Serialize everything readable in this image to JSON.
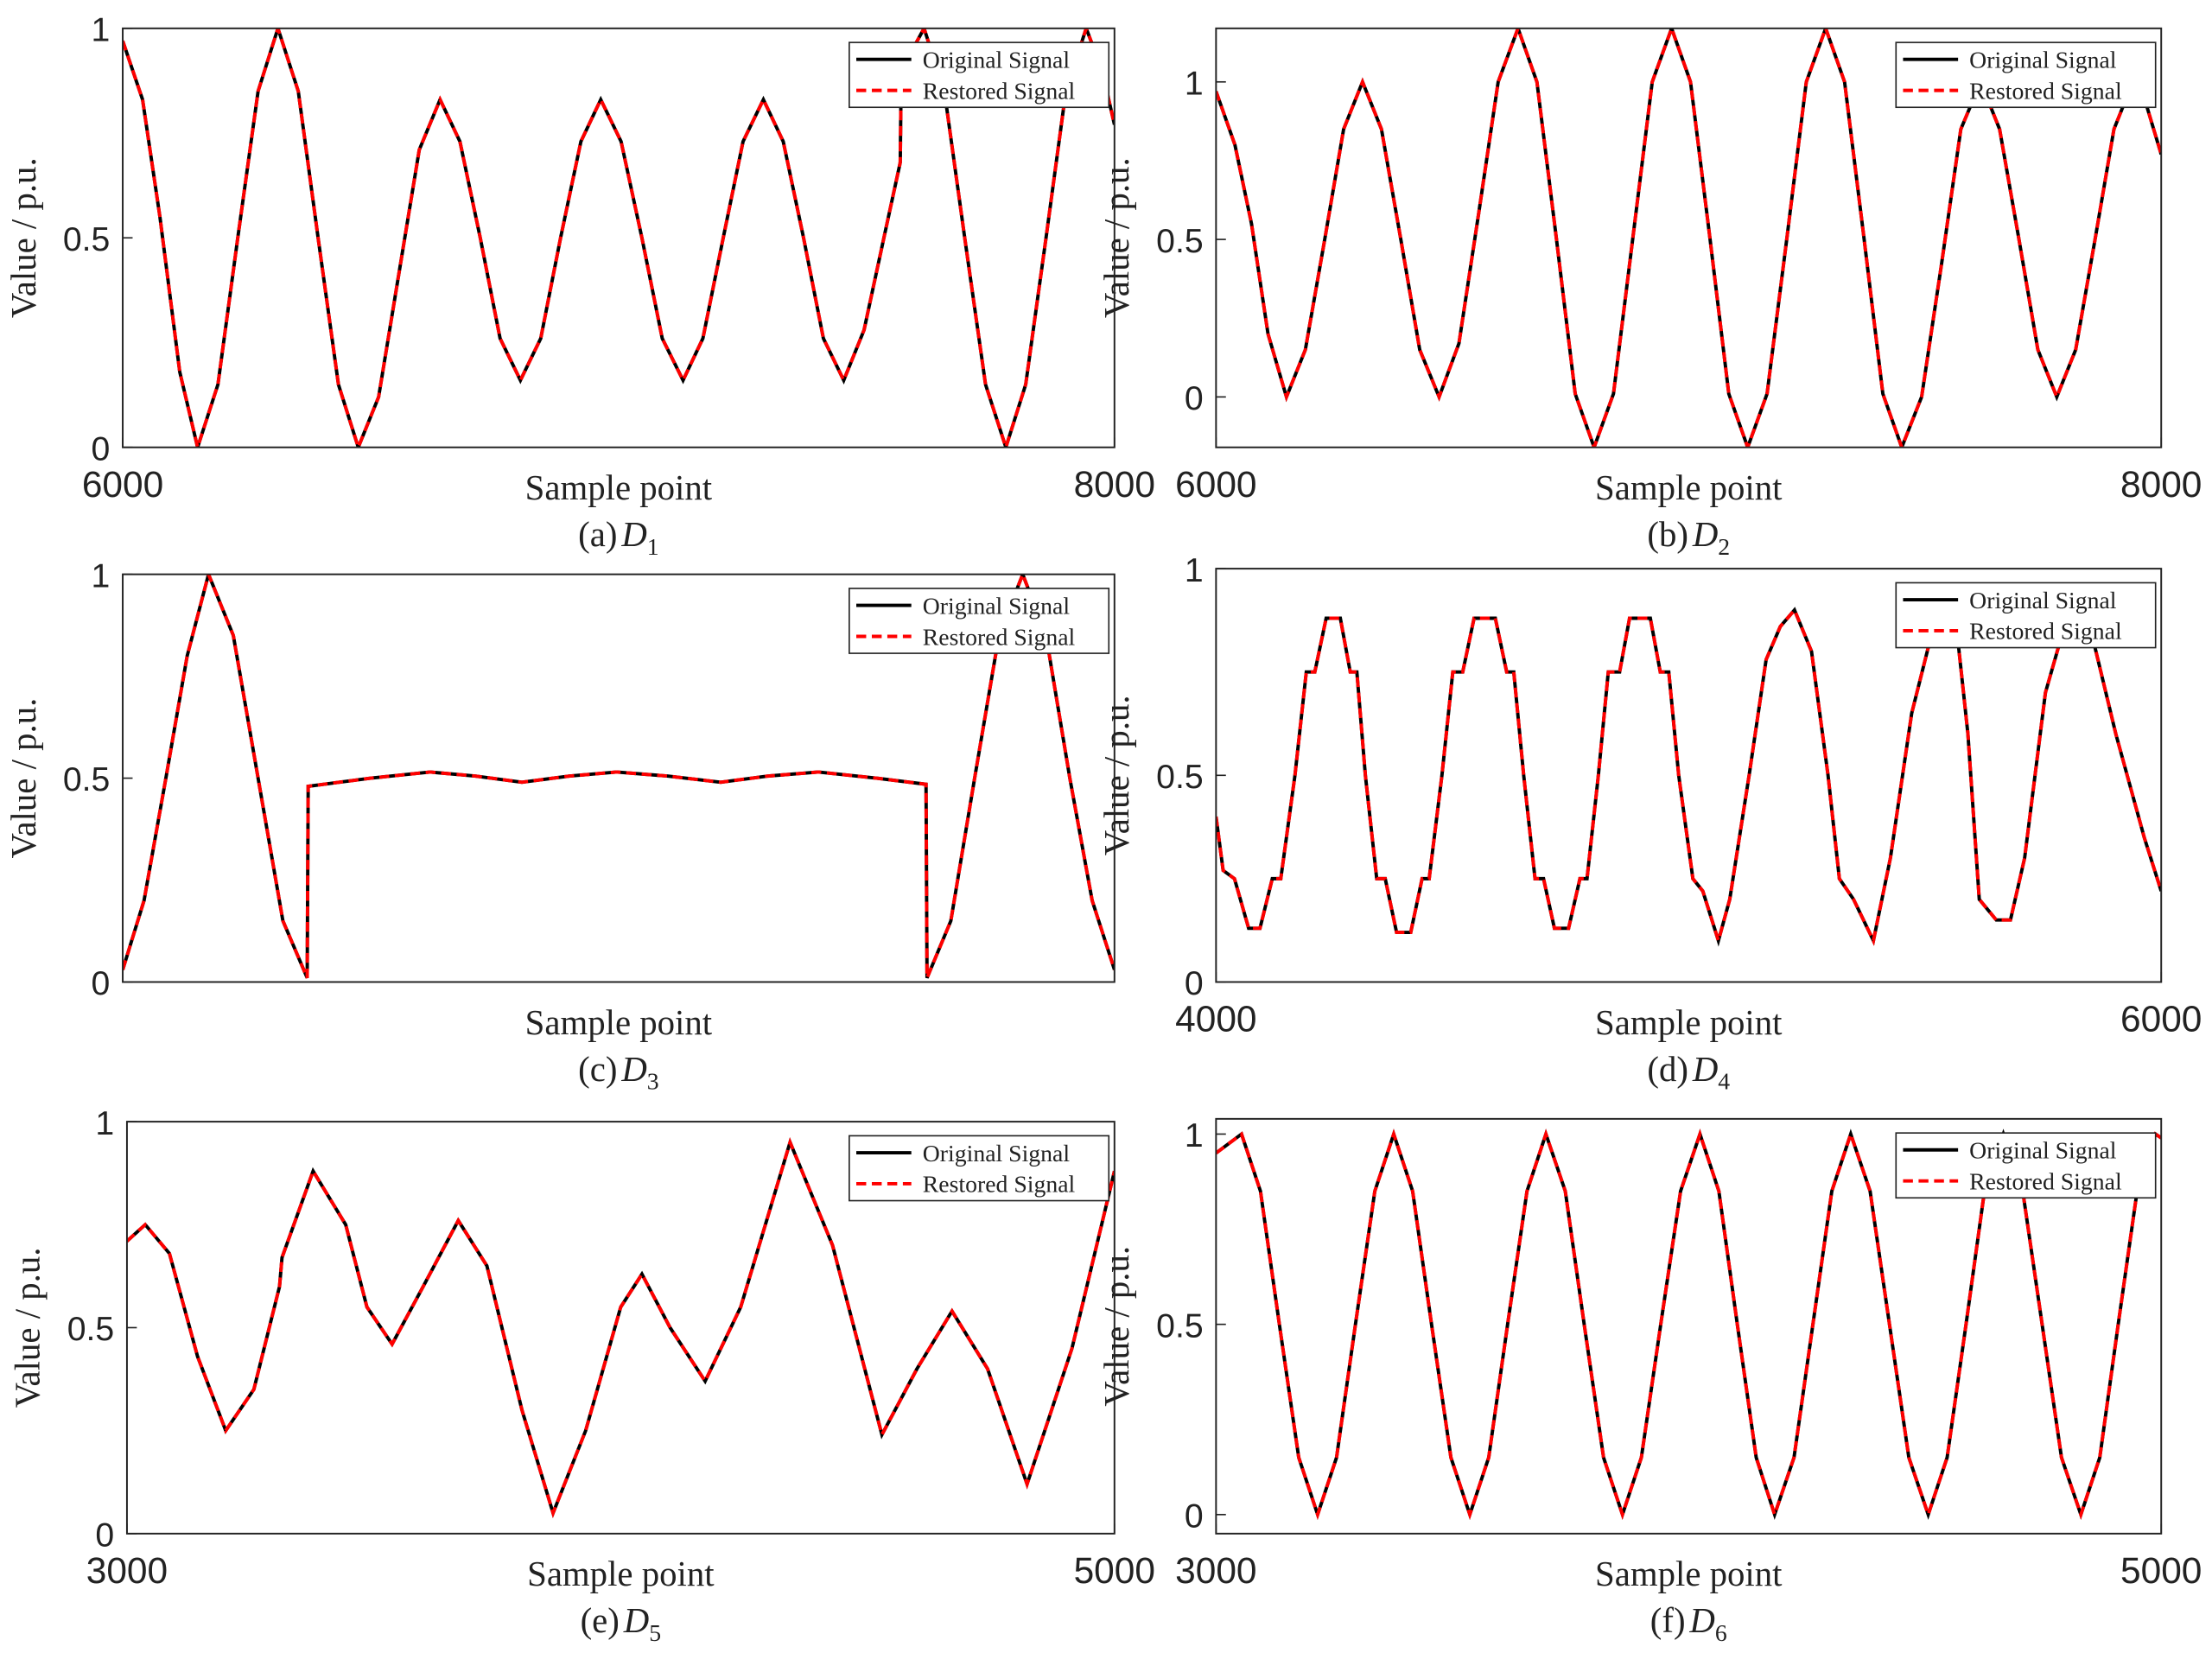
{
  "chart_data": [
    {
      "type": "line",
      "caption_label": "(a)",
      "caption_var": "D",
      "caption_sub": "1",
      "xlabel": "Sample point",
      "ylabel": "Value / p.u.",
      "xlim": [
        6000,
        8000
      ],
      "ylim": [
        0,
        1
      ],
      "xticks": [
        6000,
        8000
      ],
      "yticks": [
        0,
        0.5,
        1
      ],
      "legend": "upper right",
      "x": [
        6000,
        6040,
        6075,
        6115,
        6151,
        6192,
        6232,
        6273,
        6313,
        6354,
        6394,
        6435,
        6475,
        6516,
        6557,
        6598,
        6640,
        6680,
        6721,
        6761,
        6802,
        6843,
        6883,
        6924,
        6964,
        7005,
        7047,
        7088,
        7130,
        7170,
        7211,
        7251,
        7292,
        7332,
        7373,
        7413,
        7454,
        7495,
        7535,
        7568,
        7570,
        7616,
        7657,
        7698,
        7740,
        7781,
        7821,
        7862,
        7902,
        7943,
        7975,
        8000
      ],
      "series": [
        {
          "name": "Original Signal",
          "color": "#000000",
          "linestyle": "solid",
          "values": [
            0.97,
            0.83,
            0.55,
            0.18,
            0,
            0.15,
            0.5,
            0.85,
            1,
            0.85,
            0.5,
            0.15,
            0,
            0.12,
            0.415,
            0.71,
            0.83,
            0.73,
            0.5,
            0.26,
            0.16,
            0.26,
            0.5,
            0.73,
            0.83,
            0.73,
            0.5,
            0.26,
            0.16,
            0.26,
            0.5,
            0.73,
            0.83,
            0.73,
            0.5,
            0.26,
            0.16,
            0.28,
            0.5,
            0.68,
            0.9,
            1,
            0.85,
            0.5,
            0.15,
            0,
            0.15,
            0.5,
            0.85,
            1,
            0.9,
            0.77
          ]
        },
        {
          "name": "Restored Signal",
          "color": "#ff0000",
          "linestyle": "dashed",
          "values": [
            0.97,
            0.83,
            0.55,
            0.18,
            0,
            0.15,
            0.5,
            0.85,
            1,
            0.85,
            0.5,
            0.15,
            0,
            0.12,
            0.415,
            0.71,
            0.83,
            0.73,
            0.5,
            0.26,
            0.16,
            0.26,
            0.5,
            0.73,
            0.83,
            0.73,
            0.5,
            0.26,
            0.16,
            0.26,
            0.5,
            0.73,
            0.83,
            0.73,
            0.5,
            0.26,
            0.16,
            0.28,
            0.5,
            0.68,
            0.9,
            1,
            0.85,
            0.5,
            0.15,
            0,
            0.15,
            0.5,
            0.85,
            1,
            0.9,
            0.77
          ]
        }
      ]
    },
    {
      "type": "line",
      "caption_label": "(b)",
      "caption_var": "D",
      "caption_sub": "2",
      "xlabel": "Sample point",
      "ylabel": "Value / p.u.",
      "xlim": [
        6000,
        8000
      ],
      "ylim": [
        -0.16,
        1.17
      ],
      "xticks": [
        6000,
        8000
      ],
      "yticks": [
        0,
        0.5,
        1
      ],
      "legend": "upper right",
      "x": [
        6000,
        6040,
        6075,
        6110,
        6149,
        6189,
        6230,
        6270,
        6310,
        6350,
        6391,
        6431,
        6472,
        6514,
        6556,
        6597,
        6639,
        6679,
        6720,
        6760,
        6800,
        6841,
        6882,
        6923,
        6964,
        7004,
        7045,
        7085,
        7125,
        7166,
        7208,
        7249,
        7290,
        7330,
        7371,
        7411,
        7451,
        7493,
        7535,
        7576,
        7618,
        7658,
        7699,
        7739,
        7779,
        7819,
        7860,
        7900,
        7940,
        7970,
        8000
      ],
      "series": [
        {
          "name": "Original Signal",
          "color": "#000000",
          "linestyle": "solid",
          "values": [
            0.97,
            0.8,
            0.55,
            0.2,
            0,
            0.15,
            0.5,
            0.85,
            1,
            0.85,
            0.5,
            0.15,
            0,
            0.17,
            0.585,
            1.0,
            1.17,
            1.0,
            0.505,
            0.01,
            -0.16,
            0.01,
            0.505,
            1.0,
            1.17,
            1.0,
            0.505,
            0.01,
            -0.16,
            0.01,
            0.505,
            1.0,
            1.17,
            1.0,
            0.505,
            0.01,
            -0.16,
            0.0,
            0.42,
            0.85,
            1,
            0.85,
            0.5,
            0.15,
            0,
            0.15,
            0.5,
            0.85,
            1,
            0.92,
            0.77
          ]
        },
        {
          "name": "Restored Signal",
          "color": "#ff0000",
          "linestyle": "dashed",
          "values": [
            0.97,
            0.8,
            0.55,
            0.2,
            0,
            0.15,
            0.5,
            0.85,
            1,
            0.85,
            0.5,
            0.15,
            0,
            0.17,
            0.585,
            1.0,
            1.17,
            1.0,
            0.505,
            0.01,
            -0.16,
            0.01,
            0.505,
            1.0,
            1.17,
            1.0,
            0.505,
            0.01,
            -0.16,
            0.01,
            0.505,
            1.0,
            1.17,
            1.0,
            0.505,
            0.01,
            -0.16,
            0.0,
            0.42,
            0.85,
            1,
            0.85,
            0.5,
            0.15,
            0,
            0.15,
            0.5,
            0.85,
            1,
            0.92,
            0.77
          ]
        }
      ]
    },
    {
      "type": "line",
      "caption_label": "(c)",
      "caption_var": "D",
      "caption_sub": "3",
      "xlabel": "Sample point",
      "ylabel": "Value / p.u.",
      "xlim": [
        0,
        2000
      ],
      "ylim": [
        0,
        1
      ],
      "xticks": [],
      "yticks": [
        0,
        0.5,
        1
      ],
      "legend": "upper right",
      "x": [
        0,
        43,
        87,
        130,
        173,
        223,
        273,
        323,
        372,
        374,
        500,
        620,
        712,
        805,
        900,
        996,
        1100,
        1206,
        1300,
        1403,
        1520,
        1620,
        1622,
        1670,
        1718,
        1767,
        1815,
        1862,
        1910,
        1955,
        2000
      ],
      "series": [
        {
          "name": "Original Signal",
          "color": "#000000",
          "linestyle": "solid",
          "values": [
            0.03,
            0.2,
            0.5,
            0.8,
            1,
            0.85,
            0.5,
            0.15,
            0.01,
            0.48,
            0.5,
            0.515,
            0.505,
            0.49,
            0.505,
            0.515,
            0.505,
            0.49,
            0.505,
            0.515,
            0.5,
            0.485,
            0.01,
            0.15,
            0.5,
            0.85,
            1,
            0.85,
            0.5,
            0.2,
            0.03
          ]
        },
        {
          "name": "Restored Signal",
          "color": "#ff0000",
          "linestyle": "dashed",
          "values": [
            0.03,
            0.2,
            0.5,
            0.8,
            1,
            0.85,
            0.5,
            0.15,
            0.01,
            0.48,
            0.5,
            0.515,
            0.505,
            0.49,
            0.505,
            0.515,
            0.505,
            0.49,
            0.505,
            0.515,
            0.5,
            0.485,
            0.01,
            0.15,
            0.5,
            0.85,
            1,
            0.85,
            0.5,
            0.2,
            0.03
          ]
        }
      ]
    },
    {
      "type": "line",
      "caption_label": "(d)",
      "caption_var": "D",
      "caption_sub": "4",
      "xlabel": "Sample point",
      "ylabel": "Value / p.u.",
      "xlim": [
        4000,
        6000
      ],
      "ylim": [
        0,
        1
      ],
      "xticks": [
        4000,
        6000
      ],
      "yticks": [
        0,
        0.5,
        1
      ],
      "legend": "upper right",
      "x": [
        4000,
        4015,
        4039,
        4069,
        4093,
        4119,
        4137,
        4167,
        4191,
        4209,
        4233,
        4263,
        4284,
        4298,
        4316,
        4340,
        4358,
        4382,
        4412,
        4436,
        4451,
        4478,
        4501,
        4522,
        4546,
        4591,
        4615,
        4630,
        4651,
        4675,
        4693,
        4716,
        4746,
        4770,
        4785,
        4809,
        4830,
        4854,
        4875,
        4919,
        4940,
        4958,
        4979,
        5009,
        5030,
        5063,
        5087,
        5128,
        5164,
        5194,
        5224,
        5260,
        5295,
        5319,
        5349,
        5391,
        5427,
        5472,
        5516,
        5561,
        5591,
        5615,
        5651,
        5681,
        5711,
        5755,
        5800,
        5845,
        5904,
        5964,
        6000
      ],
      "series": [
        {
          "name": "Original Signal",
          "color": "#000000",
          "linestyle": "solid",
          "values": [
            0.4,
            0.27,
            0.25,
            0.13,
            0.13,
            0.25,
            0.25,
            0.5,
            0.75,
            0.75,
            0.88,
            0.88,
            0.75,
            0.75,
            0.5,
            0.25,
            0.25,
            0.12,
            0.12,
            0.25,
            0.25,
            0.5,
            0.75,
            0.75,
            0.88,
            0.88,
            0.75,
            0.75,
            0.5,
            0.25,
            0.25,
            0.13,
            0.13,
            0.25,
            0.25,
            0.5,
            0.75,
            0.75,
            0.88,
            0.88,
            0.75,
            0.75,
            0.5,
            0.25,
            0.22,
            0.1,
            0.2,
            0.5,
            0.78,
            0.86,
            0.9,
            0.8,
            0.5,
            0.25,
            0.2,
            0.1,
            0.3,
            0.65,
            0.85,
            0.92,
            0.6,
            0.2,
            0.15,
            0.15,
            0.3,
            0.7,
            0.88,
            0.88,
            0.6,
            0.35,
            0.22
          ]
        },
        {
          "name": "Restored Signal",
          "color": "#ff0000",
          "linestyle": "dashed",
          "values": [
            0.4,
            0.27,
            0.25,
            0.13,
            0.13,
            0.25,
            0.25,
            0.5,
            0.75,
            0.75,
            0.88,
            0.88,
            0.75,
            0.75,
            0.5,
            0.25,
            0.25,
            0.12,
            0.12,
            0.25,
            0.25,
            0.5,
            0.75,
            0.75,
            0.88,
            0.88,
            0.75,
            0.75,
            0.5,
            0.25,
            0.25,
            0.13,
            0.13,
            0.25,
            0.25,
            0.5,
            0.75,
            0.75,
            0.88,
            0.88,
            0.75,
            0.75,
            0.5,
            0.25,
            0.22,
            0.1,
            0.2,
            0.5,
            0.78,
            0.86,
            0.9,
            0.8,
            0.5,
            0.25,
            0.2,
            0.1,
            0.3,
            0.65,
            0.85,
            0.92,
            0.6,
            0.2,
            0.15,
            0.15,
            0.3,
            0.7,
            0.88,
            0.88,
            0.6,
            0.35,
            0.22
          ]
        }
      ]
    },
    {
      "type": "line",
      "caption_label": "(e)",
      "caption_var": "D",
      "caption_sub": "5",
      "xlabel": "Sample point",
      "ylabel": "Value / p.u.",
      "xlim": [
        3000,
        5000
      ],
      "ylim": [
        0,
        1
      ],
      "xticks": [
        3000,
        5000
      ],
      "yticks": [
        0,
        0.5,
        1
      ],
      "legend": "upper right",
      "x": [
        3000,
        3037,
        3086,
        3143,
        3200,
        3257,
        3309,
        3314,
        3377,
        3443,
        3486,
        3537,
        3600,
        3671,
        3729,
        3800,
        3863,
        3929,
        4000,
        4043,
        4100,
        4171,
        4243,
        4343,
        4429,
        4529,
        4600,
        4671,
        4743,
        4823,
        4914,
        5000
      ],
      "series": [
        {
          "name": "Original Signal",
          "color": "#000000",
          "linestyle": "solid",
          "values": [
            0.71,
            0.75,
            0.68,
            0.43,
            0.25,
            0.35,
            0.6,
            0.67,
            0.88,
            0.75,
            0.55,
            0.46,
            0.6,
            0.76,
            0.65,
            0.3,
            0.05,
            0.25,
            0.55,
            0.63,
            0.5,
            0.37,
            0.55,
            0.95,
            0.7,
            0.24,
            0.4,
            0.54,
            0.4,
            0.12,
            0.45,
            0.88
          ]
        },
        {
          "name": "Restored Signal",
          "color": "#ff0000",
          "linestyle": "dashed",
          "values": [
            0.71,
            0.75,
            0.68,
            0.43,
            0.25,
            0.35,
            0.6,
            0.67,
            0.88,
            0.75,
            0.55,
            0.46,
            0.6,
            0.76,
            0.65,
            0.3,
            0.05,
            0.25,
            0.55,
            0.63,
            0.5,
            0.37,
            0.55,
            0.95,
            0.7,
            0.24,
            0.4,
            0.54,
            0.4,
            0.12,
            0.45,
            0.88
          ]
        }
      ]
    },
    {
      "type": "line",
      "caption_label": "(f)",
      "caption_var": "D",
      "caption_sub": "6",
      "xlabel": "Sample point",
      "ylabel": "Value / p.u.",
      "xlim": [
        3000,
        5000
      ],
      "ylim": [
        -0.05,
        1.04
      ],
      "xticks": [
        3000,
        5000
      ],
      "yticks": [
        0,
        0.5,
        1
      ],
      "legend": "upper right",
      "x": [
        3000,
        3054,
        3094,
        3134,
        3175,
        3215,
        3255,
        3295,
        3336,
        3376,
        3416,
        3456,
        3497,
        3537,
        3577,
        3617,
        3658,
        3698,
        3739,
        3779,
        3820,
        3860,
        3900,
        3941,
        3983,
        4024,
        4064,
        4103,
        4143,
        4182,
        4223,
        4263,
        4303,
        4343,
        4384,
        4425,
        4466,
        4507,
        4547,
        4587,
        4626,
        4666,
        4707,
        4748,
        4789,
        4830,
        4870,
        4909,
        4949,
        4988,
        5000
      ],
      "series": [
        {
          "name": "Original Signal",
          "color": "#000000",
          "linestyle": "solid",
          "values": [
            0.95,
            1,
            0.85,
            0.5,
            0.15,
            0,
            0.15,
            0.5,
            0.85,
            1,
            0.85,
            0.5,
            0.15,
            0,
            0.15,
            0.5,
            0.85,
            1,
            0.85,
            0.5,
            0.15,
            0,
            0.15,
            0.5,
            0.85,
            1,
            0.85,
            0.5,
            0.15,
            0,
            0.15,
            0.5,
            0.85,
            1,
            0.85,
            0.5,
            0.15,
            0,
            0.15,
            0.5,
            0.85,
            1,
            0.85,
            0.5,
            0.15,
            0,
            0.15,
            0.5,
            0.85,
            1,
            0.99
          ]
        },
        {
          "name": "Restored Signal",
          "color": "#ff0000",
          "linestyle": "dashed",
          "values": [
            0.95,
            1,
            0.85,
            0.5,
            0.15,
            0,
            0.15,
            0.5,
            0.85,
            1,
            0.85,
            0.5,
            0.15,
            0,
            0.15,
            0.5,
            0.85,
            1,
            0.85,
            0.5,
            0.15,
            0,
            0.15,
            0.5,
            0.85,
            1,
            0.85,
            0.5,
            0.15,
            0,
            0.15,
            0.5,
            0.85,
            1,
            0.85,
            0.5,
            0.15,
            0,
            0.15,
            0.5,
            0.85,
            1,
            0.85,
            0.5,
            0.15,
            0,
            0.15,
            0.5,
            0.85,
            1,
            0.99
          ]
        }
      ]
    }
  ]
}
